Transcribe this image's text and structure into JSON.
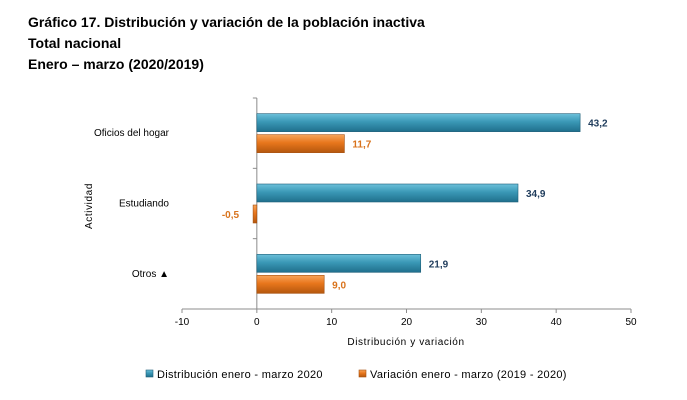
{
  "header": {
    "title": "Gráfico 17. Distribución y variación de la población inactiva",
    "subtitle": "Total nacional",
    "period": "Enero – marzo (2020/2019)"
  },
  "chart_data": {
    "type": "bar",
    "orientation": "horizontal",
    "categories": [
      "Oficios del hogar",
      "Estudiando",
      "Otros ▲"
    ],
    "series": [
      {
        "name": "Distribución enero - marzo 2020",
        "values": [
          43.2,
          34.9,
          21.9
        ],
        "labels": [
          "43,2",
          "34,9",
          "21,9"
        ],
        "color": "#3a98b6"
      },
      {
        "name": "Variación enero - marzo (2019 - 2020)",
        "values": [
          11.7,
          -0.5,
          9.0
        ],
        "labels": [
          "11,7",
          "-0,5",
          "9,0"
        ],
        "color": "#e8761c"
      }
    ],
    "xlabel": "Distribución y variación",
    "ylabel": "Actividad",
    "xlim": [
      -10,
      50
    ],
    "xticks": [
      -10,
      0,
      10,
      20,
      30,
      40,
      50
    ],
    "xtick_labels": [
      "-10",
      "0",
      "10",
      "20",
      "30",
      "40",
      "50"
    ],
    "grid": false,
    "legend": "bottom"
  }
}
